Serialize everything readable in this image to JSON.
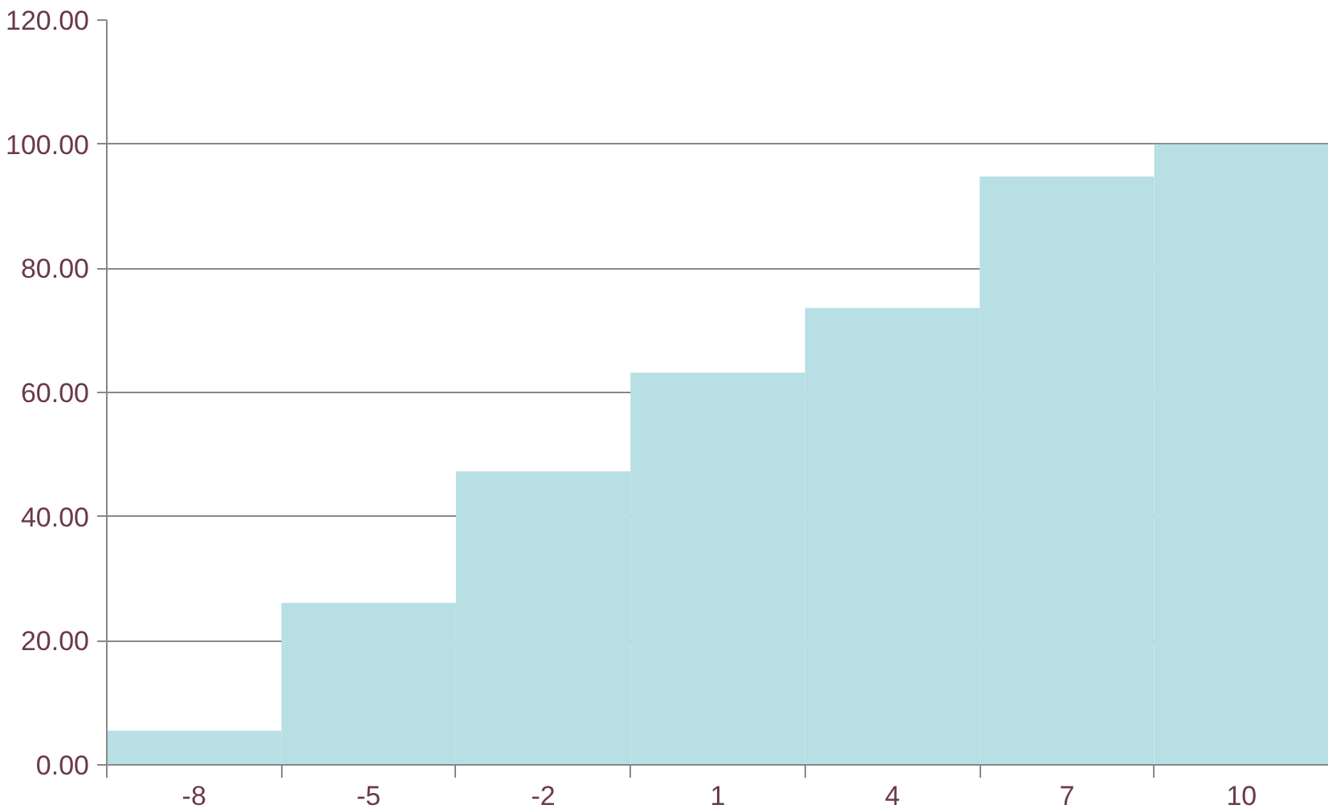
{
  "chart_data": {
    "type": "bar",
    "categories": [
      "-8",
      "-5",
      "-2",
      "1",
      "4",
      "7",
      "10"
    ],
    "values": [
      5.5,
      26.1,
      47.3,
      63.2,
      73.6,
      94.8,
      100
    ],
    "color": "#b8dfe3",
    "ylim": [
      0,
      120
    ],
    "yticks": [
      {
        "value": 0,
        "label": "0.00"
      },
      {
        "value": 20,
        "label": "20.00"
      },
      {
        "value": 40,
        "label": "40.00"
      },
      {
        "value": 60,
        "label": "60.00"
      },
      {
        "value": 80,
        "label": "80.00"
      },
      {
        "value": 100,
        "label": "100.00"
      },
      {
        "value": 120,
        "label": "120.00"
      }
    ],
    "grid": "y"
  }
}
